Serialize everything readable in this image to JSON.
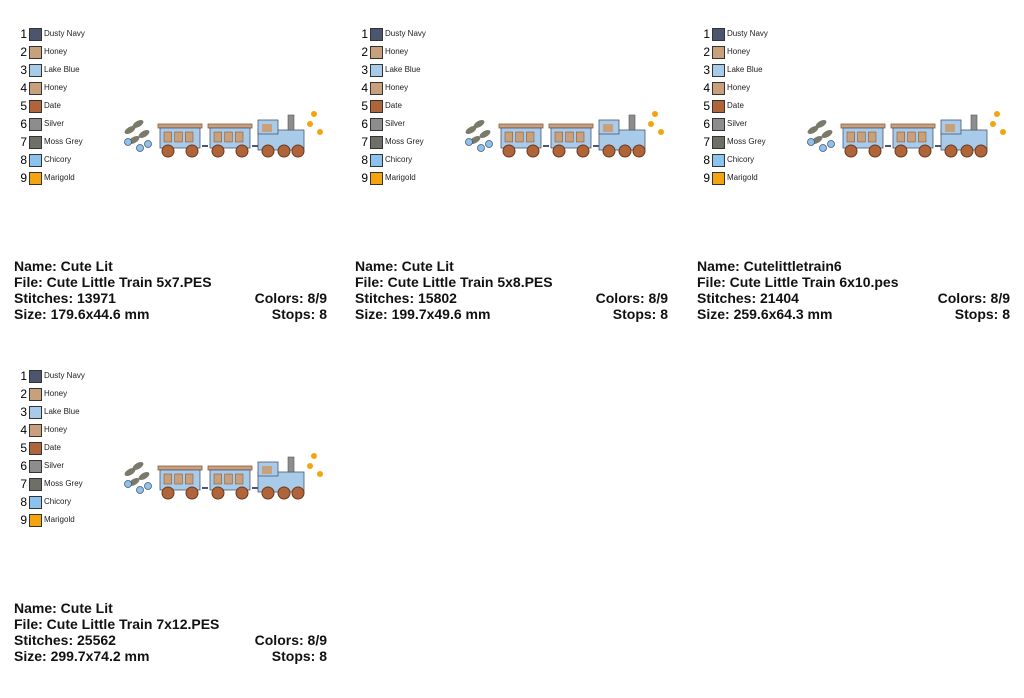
{
  "palette": [
    {
      "number": "1",
      "name": "Dusty Navy",
      "color": "#4b556e"
    },
    {
      "number": "2",
      "name": "Honey",
      "color": "#c9a07c"
    },
    {
      "number": "3",
      "name": "Lake Blue",
      "color": "#a9cbea"
    },
    {
      "number": "4",
      "name": "Honey",
      "color": "#c9a07c"
    },
    {
      "number": "5",
      "name": "Date",
      "color": "#b0643a"
    },
    {
      "number": "6",
      "name": "Silver",
      "color": "#8d8d8d"
    },
    {
      "number": "7",
      "name": "Moss Grey",
      "color": "#6e6f66"
    },
    {
      "number": "8",
      "name": "Chicory",
      "color": "#8cc3ee"
    },
    {
      "number": "9",
      "name": "Marigold",
      "color": "#f3a40e"
    }
  ],
  "cards": [
    {
      "name": "Name: Cute Lit",
      "file": "File: Cute Little Train 5x7.PES",
      "stitches": "Stitches: 13971",
      "colors": "Colors: 8/9",
      "size": "Size: 179.6x44.6 mm",
      "stops": "Stops: 8"
    },
    {
      "name": "Name: Cute Lit",
      "file": "File: Cute Little Train 5x8.PES",
      "stitches": "Stitches: 15802",
      "colors": "Colors: 8/9",
      "size": "Size: 199.7x49.6 mm",
      "stops": "Stops: 8"
    },
    {
      "name": "Name: Cutelittletrain6",
      "file": "File: Cute Little Train 6x10.pes",
      "stitches": "Stitches: 21404",
      "colors": "Colors: 8/9",
      "size": "Size: 259.6x64.3 mm",
      "stops": "Stops: 8"
    },
    {
      "name": "Name: Cute Lit",
      "file": "File: Cute Little Train 7x12.PES",
      "stitches": "Stitches: 25562",
      "colors": "Colors: 8/9",
      "size": "Size: 299.7x74.2 mm",
      "stops": "Stops: 8"
    }
  ]
}
